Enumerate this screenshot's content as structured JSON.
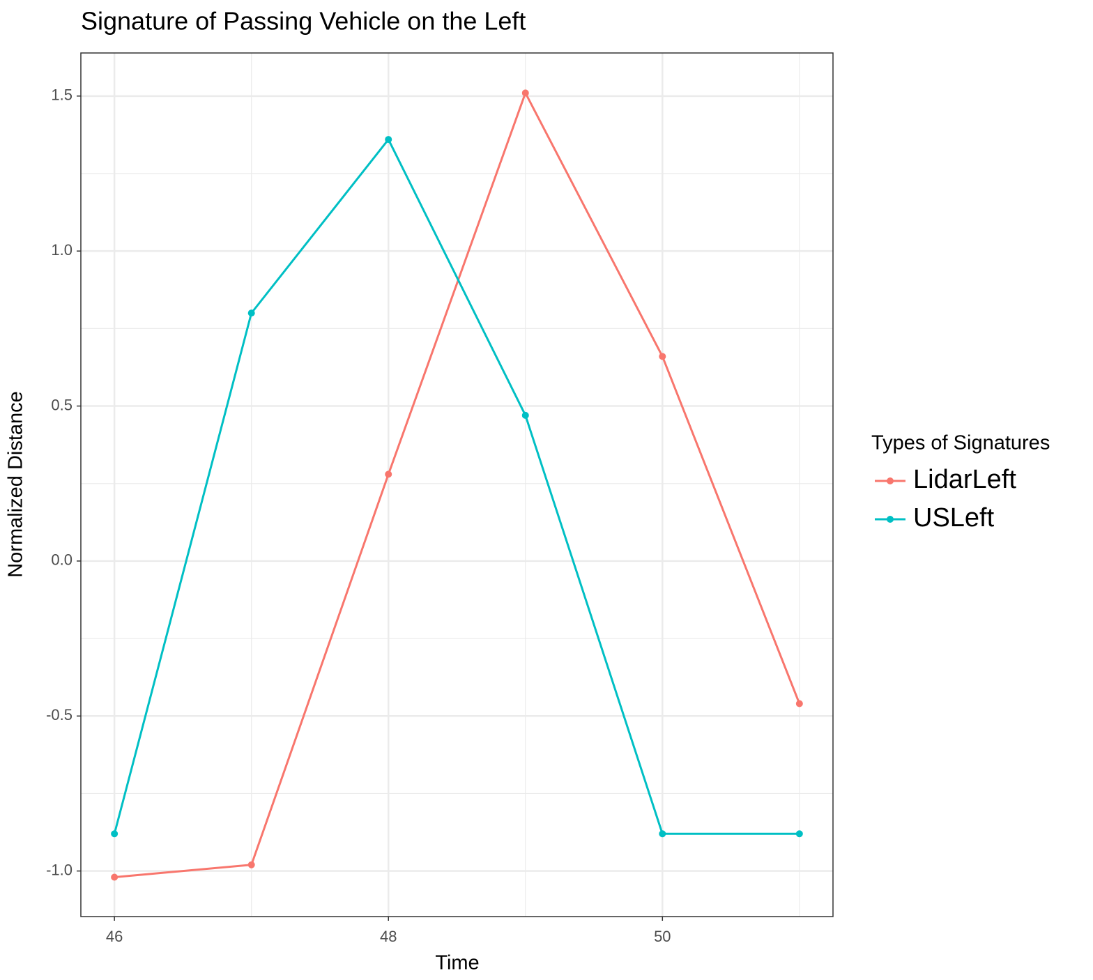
{
  "chart_data": {
    "type": "line",
    "title": "Signature of Passing Vehicle on the Left",
    "x_label": "Time",
    "y_label": "Normalized Distance",
    "x": [
      46,
      47,
      48,
      49,
      50,
      51
    ],
    "series": [
      {
        "name": "LidarLeft",
        "color": "#f8766d",
        "values": [
          -1.02,
          -0.98,
          0.28,
          1.51,
          0.66,
          -0.46
        ]
      },
      {
        "name": "USLeft",
        "color": "#00bfc4",
        "values": [
          -0.88,
          0.8,
          1.36,
          0.47,
          -0.88,
          -0.88
        ]
      }
    ],
    "legend_title": "Types of Signatures",
    "xlim": [
      45.755,
      51.245
    ],
    "ylim": [
      -1.147,
      1.639
    ],
    "xticks": [
      46,
      48,
      50
    ],
    "yticks": [
      {
        "value": -1,
        "label": "-1.0"
      },
      -0.5,
      {
        "value": 0,
        "label": "0.0"
      },
      0.5,
      {
        "value": 1,
        "label": "1.0"
      },
      1.5
    ],
    "minor_xticks": [
      47,
      49,
      51
    ],
    "minor_yticks": [
      -0.75,
      -0.25,
      0.25,
      0.75,
      1.25
    ],
    "grid": true,
    "legend": "right"
  }
}
